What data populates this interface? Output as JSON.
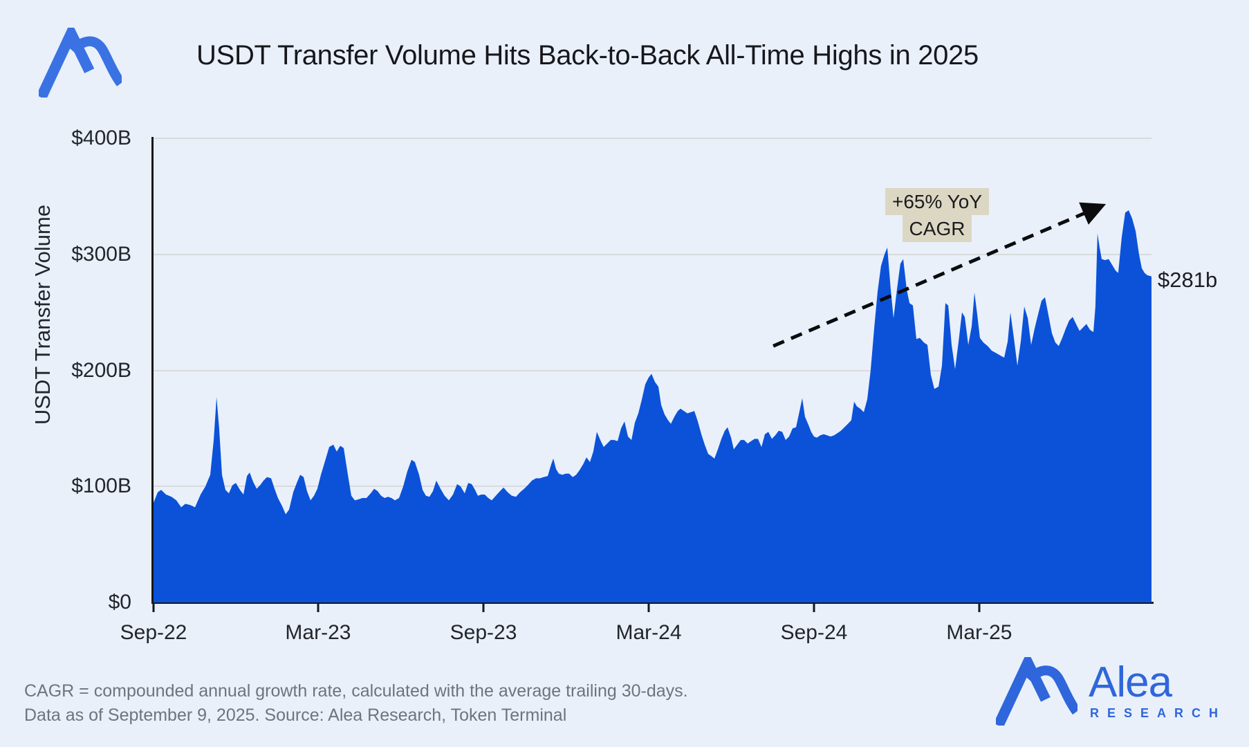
{
  "title": "USDT Transfer Volume Hits Back-to-Back All-Time Highs in 2025",
  "annotation": {
    "line1": "+65% YoY",
    "line2": "CAGR",
    "arrow": {
      "x1_pct": 62.1,
      "v1": 221,
      "x2_pct": 94.8,
      "v2": 341
    }
  },
  "end_label": "$281b",
  "footer": {
    "line1": "CAGR = compounded annual growth rate, calculated with the average trailing 30-days.",
    "line2": "Data as of September 9, 2025. Source: Alea Research, Token Terminal"
  },
  "branding": {
    "mark": "alea-logo-mark",
    "word_main": "Alea",
    "word_sub": "RESEARCH"
  },
  "colors": {
    "bg": "#E9F0FA",
    "chart-blue": "#0B52D9",
    "logo-blue": "#2F66DB",
    "logo-blue-top": "#3A72E4",
    "grid": "#D8DADC",
    "axis": "#17181A",
    "annot-bg": "#DCD7C3",
    "footer": "#6E747E",
    "arrow": "#0B0C0E"
  },
  "chart_data": {
    "type": "area",
    "title": "USDT Transfer Volume Hits Back-to-Back All-Time Highs in 2025",
    "xlabel": "",
    "ylabel": "USDT Transfer Volume",
    "ylim": [
      0,
      400
    ],
    "grid": "horizontal",
    "series_name": "USDT transfer volume, trailing 30-day average ($B)",
    "x_unit": "percent of time axis, Sep 2022 to Sep 9 2025",
    "yticks": [
      {
        "value": 0,
        "label": "$0"
      },
      {
        "value": 100,
        "label": "$100B"
      },
      {
        "value": 200,
        "label": "$200B"
      },
      {
        "value": 300,
        "label": "$300B"
      },
      {
        "value": 400,
        "label": "$400B"
      }
    ],
    "xticks": [
      {
        "pct": 0,
        "label": "Sep-22"
      },
      {
        "pct": 16.49,
        "label": "Mar-23"
      },
      {
        "pct": 33.06,
        "label": "Sep-23"
      },
      {
        "pct": 49.62,
        "label": "Mar-24"
      },
      {
        "pct": 66.18,
        "label": "Sep-24"
      },
      {
        "pct": 82.74,
        "label": "Mar-25"
      }
    ],
    "final_value_label": "$281b",
    "points": [
      [
        0,
        86
      ],
      [
        0.42,
        95
      ],
      [
        0.76,
        97
      ],
      [
        1.25,
        93
      ],
      [
        1.8,
        91
      ],
      [
        2.29,
        88
      ],
      [
        2.77,
        82
      ],
      [
        3.19,
        85
      ],
      [
        3.67,
        84
      ],
      [
        4.16,
        82
      ],
      [
        4.71,
        93
      ],
      [
        5.2,
        100
      ],
      [
        5.68,
        110
      ],
      [
        6.03,
        140
      ],
      [
        6.31,
        177
      ],
      [
        6.58,
        150
      ],
      [
        6.86,
        110
      ],
      [
        7.21,
        97
      ],
      [
        7.55,
        94
      ],
      [
        7.9,
        101
      ],
      [
        8.25,
        103
      ],
      [
        8.66,
        97
      ],
      [
        9.01,
        93
      ],
      [
        9.36,
        109
      ],
      [
        9.63,
        112
      ],
      [
        9.98,
        104
      ],
      [
        10.33,
        98
      ],
      [
        10.67,
        101
      ],
      [
        11.02,
        105
      ],
      [
        11.37,
        108
      ],
      [
        11.78,
        107
      ],
      [
        12.13,
        98
      ],
      [
        12.47,
        90
      ],
      [
        12.89,
        83
      ],
      [
        13.24,
        76
      ],
      [
        13.58,
        80
      ],
      [
        14,
        95
      ],
      [
        14.35,
        103
      ],
      [
        14.69,
        110
      ],
      [
        15.04,
        108
      ],
      [
        15.38,
        96
      ],
      [
        15.73,
        88
      ],
      [
        16.08,
        92
      ],
      [
        16.42,
        98
      ],
      [
        16.77,
        110
      ],
      [
        17.19,
        122
      ],
      [
        17.6,
        134
      ],
      [
        18.02,
        136
      ],
      [
        18.36,
        130
      ],
      [
        18.71,
        135
      ],
      [
        19.06,
        133
      ],
      [
        19.47,
        110
      ],
      [
        19.82,
        92
      ],
      [
        20.17,
        88
      ],
      [
        20.58,
        89
      ],
      [
        20.93,
        90
      ],
      [
        21.34,
        90
      ],
      [
        21.76,
        94
      ],
      [
        22.11,
        98
      ],
      [
        22.45,
        96
      ],
      [
        22.8,
        92
      ],
      [
        23.15,
        90
      ],
      [
        23.49,
        91
      ],
      [
        23.84,
        90
      ],
      [
        24.19,
        88
      ],
      [
        24.6,
        90
      ],
      [
        25.02,
        100
      ],
      [
        25.43,
        113
      ],
      [
        25.85,
        123
      ],
      [
        26.19,
        121
      ],
      [
        26.61,
        110
      ],
      [
        26.96,
        97
      ],
      [
        27.3,
        92
      ],
      [
        27.65,
        91
      ],
      [
        28,
        96
      ],
      [
        28.34,
        105
      ],
      [
        28.76,
        98
      ],
      [
        29.17,
        92
      ],
      [
        29.59,
        88
      ],
      [
        30.01,
        93
      ],
      [
        30.42,
        102
      ],
      [
        30.77,
        100
      ],
      [
        31.18,
        94
      ],
      [
        31.53,
        103
      ],
      [
        31.88,
        102
      ],
      [
        32.22,
        97
      ],
      [
        32.5,
        92
      ],
      [
        32.85,
        93
      ],
      [
        33.19,
        93
      ],
      [
        33.54,
        90
      ],
      [
        33.89,
        88
      ],
      [
        34.3,
        92
      ],
      [
        34.72,
        96
      ],
      [
        35.07,
        99
      ],
      [
        35.48,
        95
      ],
      [
        35.9,
        92
      ],
      [
        36.31,
        91
      ],
      [
        36.73,
        95
      ],
      [
        37.14,
        98
      ],
      [
        37.49,
        101
      ],
      [
        37.91,
        105
      ],
      [
        38.32,
        107
      ],
      [
        38.74,
        107
      ],
      [
        39.08,
        108
      ],
      [
        39.5,
        109
      ],
      [
        39.85,
        119
      ],
      [
        40.06,
        124
      ],
      [
        40.33,
        115
      ],
      [
        40.61,
        111
      ],
      [
        40.96,
        110
      ],
      [
        41.3,
        111
      ],
      [
        41.65,
        111
      ],
      [
        42,
        108
      ],
      [
        42.34,
        110
      ],
      [
        42.69,
        114
      ],
      [
        43.04,
        119
      ],
      [
        43.38,
        125
      ],
      [
        43.73,
        121
      ],
      [
        44.07,
        130
      ],
      [
        44.42,
        147
      ],
      [
        44.77,
        140
      ],
      [
        45.11,
        134
      ],
      [
        45.46,
        137
      ],
      [
        45.81,
        140
      ],
      [
        46.15,
        140
      ],
      [
        46.5,
        139
      ],
      [
        46.85,
        150
      ],
      [
        47.19,
        156
      ],
      [
        47.54,
        143
      ],
      [
        47.89,
        140
      ],
      [
        48.23,
        155
      ],
      [
        48.58,
        163
      ],
      [
        48.93,
        175
      ],
      [
        49.27,
        188
      ],
      [
        49.62,
        194
      ],
      [
        49.9,
        197
      ],
      [
        50.24,
        190
      ],
      [
        50.59,
        186
      ],
      [
        50.87,
        170
      ],
      [
        51.21,
        162
      ],
      [
        51.56,
        157
      ],
      [
        51.84,
        154
      ],
      [
        52.18,
        160
      ],
      [
        52.53,
        165
      ],
      [
        52.81,
        167
      ],
      [
        53.15,
        165
      ],
      [
        53.5,
        163
      ],
      [
        53.85,
        164
      ],
      [
        54.19,
        165
      ],
      [
        54.54,
        156
      ],
      [
        54.89,
        145
      ],
      [
        55.23,
        136
      ],
      [
        55.58,
        128
      ],
      [
        55.92,
        126
      ],
      [
        56.2,
        124
      ],
      [
        56.55,
        132
      ],
      [
        56.9,
        141
      ],
      [
        57.24,
        148
      ],
      [
        57.52,
        151
      ],
      [
        57.87,
        142
      ],
      [
        58.14,
        132
      ],
      [
        58.49,
        136
      ],
      [
        58.84,
        140
      ],
      [
        59.18,
        140
      ],
      [
        59.53,
        137
      ],
      [
        59.88,
        139
      ],
      [
        60.22,
        141
      ],
      [
        60.57,
        141
      ],
      [
        60.92,
        134
      ],
      [
        61.26,
        145
      ],
      [
        61.61,
        147
      ],
      [
        61.96,
        141
      ],
      [
        62.3,
        144
      ],
      [
        62.65,
        148
      ],
      [
        63,
        147
      ],
      [
        63.34,
        140
      ],
      [
        63.69,
        143
      ],
      [
        64.03,
        150
      ],
      [
        64.38,
        151
      ],
      [
        64.73,
        165
      ],
      [
        65,
        176
      ],
      [
        65.28,
        160
      ],
      [
        65.63,
        153
      ],
      [
        65.9,
        147
      ],
      [
        66.18,
        143
      ],
      [
        66.46,
        142
      ],
      [
        66.81,
        144
      ],
      [
        67.15,
        145
      ],
      [
        67.5,
        144
      ],
      [
        67.84,
        143
      ],
      [
        68.19,
        144
      ],
      [
        68.54,
        146
      ],
      [
        68.88,
        148
      ],
      [
        69.23,
        151
      ],
      [
        69.58,
        154
      ],
      [
        69.92,
        157
      ],
      [
        70.2,
        173
      ],
      [
        70.48,
        169
      ],
      [
        70.82,
        167
      ],
      [
        71.17,
        164
      ],
      [
        71.52,
        175
      ],
      [
        71.86,
        200
      ],
      [
        72.21,
        236
      ],
      [
        72.56,
        268
      ],
      [
        72.9,
        290
      ],
      [
        73.25,
        300
      ],
      [
        73.53,
        306
      ],
      [
        73.87,
        270
      ],
      [
        74.15,
        245
      ],
      [
        74.5,
        270
      ],
      [
        74.84,
        292
      ],
      [
        75.12,
        296
      ],
      [
        75.47,
        270
      ],
      [
        75.75,
        258
      ],
      [
        76.09,
        256
      ],
      [
        76.44,
        227
      ],
      [
        76.78,
        228
      ],
      [
        77.2,
        224
      ],
      [
        77.55,
        222
      ],
      [
        77.89,
        196
      ],
      [
        78.24,
        184
      ],
      [
        78.66,
        186
      ],
      [
        79,
        204
      ],
      [
        79.35,
        258
      ],
      [
        79.63,
        256
      ],
      [
        79.97,
        222
      ],
      [
        80.32,
        201
      ],
      [
        80.67,
        225
      ],
      [
        81.01,
        250
      ],
      [
        81.29,
        246
      ],
      [
        81.64,
        222
      ],
      [
        81.98,
        238
      ],
      [
        82.26,
        267
      ],
      [
        82.54,
        248
      ],
      [
        82.81,
        228
      ],
      [
        83.16,
        224
      ],
      [
        83.58,
        221
      ],
      [
        83.99,
        217
      ],
      [
        84.41,
        215
      ],
      [
        84.82,
        213
      ],
      [
        85.24,
        211
      ],
      [
        85.59,
        225
      ],
      [
        85.86,
        250
      ],
      [
        86.21,
        228
      ],
      [
        86.56,
        204
      ],
      [
        86.9,
        225
      ],
      [
        87.25,
        255
      ],
      [
        87.6,
        245
      ],
      [
        87.94,
        222
      ],
      [
        88.29,
        236
      ],
      [
        88.63,
        248
      ],
      [
        88.98,
        260
      ],
      [
        89.33,
        263
      ],
      [
        89.67,
        248
      ],
      [
        90.02,
        232
      ],
      [
        90.37,
        224
      ],
      [
        90.71,
        221
      ],
      [
        91.06,
        228
      ],
      [
        91.41,
        236
      ],
      [
        91.75,
        243
      ],
      [
        92.1,
        246
      ],
      [
        92.44,
        240
      ],
      [
        92.79,
        234
      ],
      [
        93.14,
        237
      ],
      [
        93.48,
        240
      ],
      [
        93.83,
        235
      ],
      [
        94.18,
        233
      ],
      [
        94.38,
        255
      ],
      [
        94.59,
        318
      ],
      [
        94.8,
        306
      ],
      [
        95.01,
        296
      ],
      [
        95.36,
        295
      ],
      [
        95.7,
        296
      ],
      [
        96.05,
        291
      ],
      [
        96.4,
        286
      ],
      [
        96.67,
        284
      ],
      [
        97.02,
        315
      ],
      [
        97.37,
        336
      ],
      [
        97.71,
        338
      ],
      [
        98.06,
        331
      ],
      [
        98.41,
        320
      ],
      [
        98.75,
        300
      ],
      [
        99.03,
        288
      ],
      [
        99.31,
        284
      ],
      [
        99.58,
        282
      ],
      [
        100,
        281
      ]
    ]
  }
}
